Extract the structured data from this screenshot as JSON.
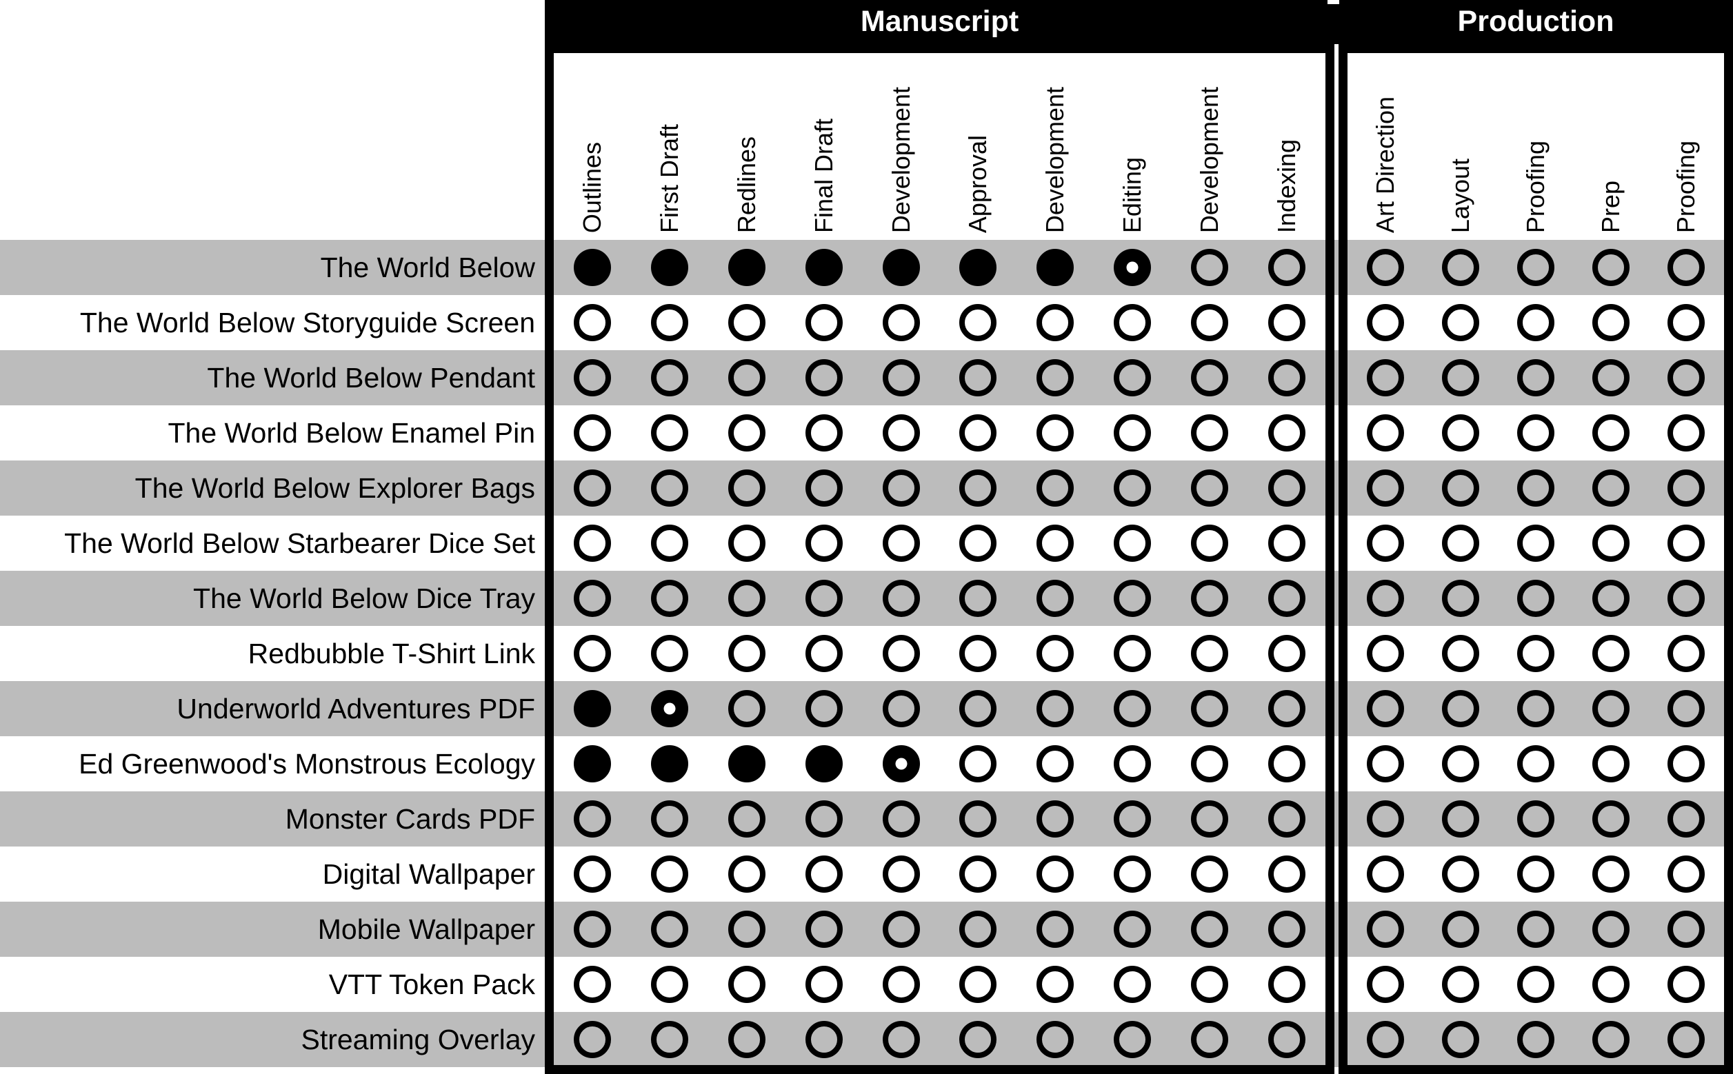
{
  "colors": {
    "row_stripe": "#bcbcbc",
    "header_band_bg": "#000000",
    "header_band_text": "#ffffff",
    "circle": "#000000"
  },
  "chart_data": {
    "type": "table",
    "column_groups": [
      {
        "title": "Manuscript",
        "columns": [
          "Outlines",
          "First Draft",
          "Redlines",
          "Final Draft",
          "Development",
          "Approval",
          "Development",
          "Editing",
          "Development",
          "Indexing"
        ]
      },
      {
        "title": "Production",
        "columns": [
          "Art Direction",
          "Layout",
          "Proofing",
          "Prep",
          "Proofing"
        ]
      }
    ],
    "status_legend": {
      "complete": "filled circle",
      "in_progress": "filled circle with white center dot",
      "not_started": "empty circle"
    },
    "rows": [
      {
        "label": "The World Below",
        "statuses": {
          "manuscript": [
            "complete",
            "complete",
            "complete",
            "complete",
            "complete",
            "complete",
            "complete",
            "in_progress",
            "not_started",
            "not_started"
          ],
          "production": [
            "not_started",
            "not_started",
            "not_started",
            "not_started",
            "not_started"
          ]
        }
      },
      {
        "label": "The World Below Storyguide Screen",
        "statuses": {
          "manuscript": [
            "not_started",
            "not_started",
            "not_started",
            "not_started",
            "not_started",
            "not_started",
            "not_started",
            "not_started",
            "not_started",
            "not_started"
          ],
          "production": [
            "not_started",
            "not_started",
            "not_started",
            "not_started",
            "not_started"
          ]
        }
      },
      {
        "label": "The World Below Pendant",
        "statuses": {
          "manuscript": [
            "not_started",
            "not_started",
            "not_started",
            "not_started",
            "not_started",
            "not_started",
            "not_started",
            "not_started",
            "not_started",
            "not_started"
          ],
          "production": [
            "not_started",
            "not_started",
            "not_started",
            "not_started",
            "not_started"
          ]
        }
      },
      {
        "label": "The World Below Enamel Pin",
        "statuses": {
          "manuscript": [
            "not_started",
            "not_started",
            "not_started",
            "not_started",
            "not_started",
            "not_started",
            "not_started",
            "not_started",
            "not_started",
            "not_started"
          ],
          "production": [
            "not_started",
            "not_started",
            "not_started",
            "not_started",
            "not_started"
          ]
        }
      },
      {
        "label": "The World Below Explorer Bags",
        "statuses": {
          "manuscript": [
            "not_started",
            "not_started",
            "not_started",
            "not_started",
            "not_started",
            "not_started",
            "not_started",
            "not_started",
            "not_started",
            "not_started"
          ],
          "production": [
            "not_started",
            "not_started",
            "not_started",
            "not_started",
            "not_started"
          ]
        }
      },
      {
        "label": "The World Below Starbearer Dice Set",
        "statuses": {
          "manuscript": [
            "not_started",
            "not_started",
            "not_started",
            "not_started",
            "not_started",
            "not_started",
            "not_started",
            "not_started",
            "not_started",
            "not_started"
          ],
          "production": [
            "not_started",
            "not_started",
            "not_started",
            "not_started",
            "not_started"
          ]
        }
      },
      {
        "label": "The World Below Dice Tray",
        "statuses": {
          "manuscript": [
            "not_started",
            "not_started",
            "not_started",
            "not_started",
            "not_started",
            "not_started",
            "not_started",
            "not_started",
            "not_started",
            "not_started"
          ],
          "production": [
            "not_started",
            "not_started",
            "not_started",
            "not_started",
            "not_started"
          ]
        }
      },
      {
        "label": "Redbubble T-Shirt Link",
        "statuses": {
          "manuscript": [
            "not_started",
            "not_started",
            "not_started",
            "not_started",
            "not_started",
            "not_started",
            "not_started",
            "not_started",
            "not_started",
            "not_started"
          ],
          "production": [
            "not_started",
            "not_started",
            "not_started",
            "not_started",
            "not_started"
          ]
        }
      },
      {
        "label": "Underworld Adventures PDF",
        "statuses": {
          "manuscript": [
            "complete",
            "in_progress",
            "not_started",
            "not_started",
            "not_started",
            "not_started",
            "not_started",
            "not_started",
            "not_started",
            "not_started"
          ],
          "production": [
            "not_started",
            "not_started",
            "not_started",
            "not_started",
            "not_started"
          ]
        }
      },
      {
        "label": "Ed Greenwood's Monstrous Ecology",
        "statuses": {
          "manuscript": [
            "complete",
            "complete",
            "complete",
            "complete",
            "in_progress",
            "not_started",
            "not_started",
            "not_started",
            "not_started",
            "not_started"
          ],
          "production": [
            "not_started",
            "not_started",
            "not_started",
            "not_started",
            "not_started"
          ]
        }
      },
      {
        "label": "Monster Cards PDF",
        "statuses": {
          "manuscript": [
            "not_started",
            "not_started",
            "not_started",
            "not_started",
            "not_started",
            "not_started",
            "not_started",
            "not_started",
            "not_started",
            "not_started"
          ],
          "production": [
            "not_started",
            "not_started",
            "not_started",
            "not_started",
            "not_started"
          ]
        }
      },
      {
        "label": "Digital Wallpaper",
        "statuses": {
          "manuscript": [
            "not_started",
            "not_started",
            "not_started",
            "not_started",
            "not_started",
            "not_started",
            "not_started",
            "not_started",
            "not_started",
            "not_started"
          ],
          "production": [
            "not_started",
            "not_started",
            "not_started",
            "not_started",
            "not_started"
          ]
        }
      },
      {
        "label": "Mobile Wallpaper",
        "statuses": {
          "manuscript": [
            "not_started",
            "not_started",
            "not_started",
            "not_started",
            "not_started",
            "not_started",
            "not_started",
            "not_started",
            "not_started",
            "not_started"
          ],
          "production": [
            "not_started",
            "not_started",
            "not_started",
            "not_started",
            "not_started"
          ]
        }
      },
      {
        "label": "VTT Token Pack",
        "statuses": {
          "manuscript": [
            "not_started",
            "not_started",
            "not_started",
            "not_started",
            "not_started",
            "not_started",
            "not_started",
            "not_started",
            "not_started",
            "not_started"
          ],
          "production": [
            "not_started",
            "not_started",
            "not_started",
            "not_started",
            "not_started"
          ]
        }
      },
      {
        "label": "Streaming Overlay",
        "statuses": {
          "manuscript": [
            "not_started",
            "not_started",
            "not_started",
            "not_started",
            "not_started",
            "not_started",
            "not_started",
            "not_started",
            "not_started",
            "not_started"
          ],
          "production": [
            "not_started",
            "not_started",
            "not_started",
            "not_started",
            "not_started"
          ]
        }
      }
    ]
  }
}
